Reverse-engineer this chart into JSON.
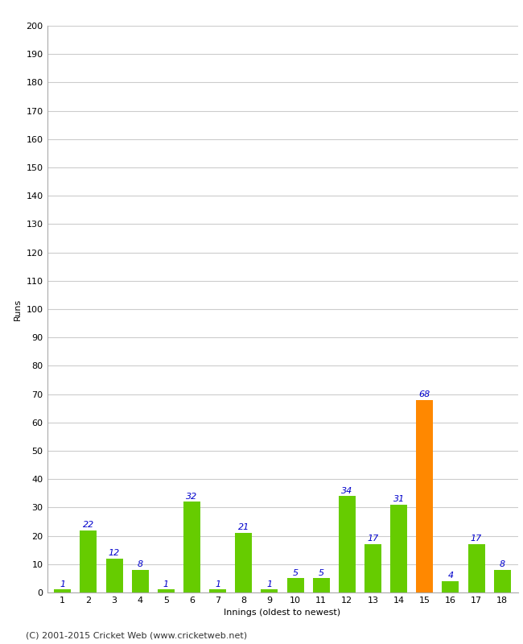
{
  "title": "",
  "xlabel": "Innings (oldest to newest)",
  "ylabel": "Runs",
  "values": [
    1,
    22,
    12,
    8,
    1,
    32,
    1,
    21,
    1,
    5,
    5,
    34,
    17,
    31,
    68,
    4,
    17,
    8
  ],
  "categories": [
    "1",
    "2",
    "3",
    "4",
    "5",
    "6",
    "7",
    "8",
    "9",
    "10",
    "11",
    "12",
    "13",
    "14",
    "15",
    "16",
    "17",
    "18"
  ],
  "bar_colors": [
    "#66cc00",
    "#66cc00",
    "#66cc00",
    "#66cc00",
    "#66cc00",
    "#66cc00",
    "#66cc00",
    "#66cc00",
    "#66cc00",
    "#66cc00",
    "#66cc00",
    "#66cc00",
    "#66cc00",
    "#66cc00",
    "#ff8800",
    "#66cc00",
    "#66cc00",
    "#66cc00"
  ],
  "label_color": "#0000cc",
  "background_color": "#ffffff",
  "grid_color": "#cccccc",
  "ylim": [
    0,
    200
  ],
  "footer": "(C) 2001-2015 Cricket Web (www.cricketweb.net)",
  "label_fontsize": 8,
  "axis_label_fontsize": 8,
  "tick_fontsize": 8,
  "footer_fontsize": 8,
  "bar_width": 0.65
}
